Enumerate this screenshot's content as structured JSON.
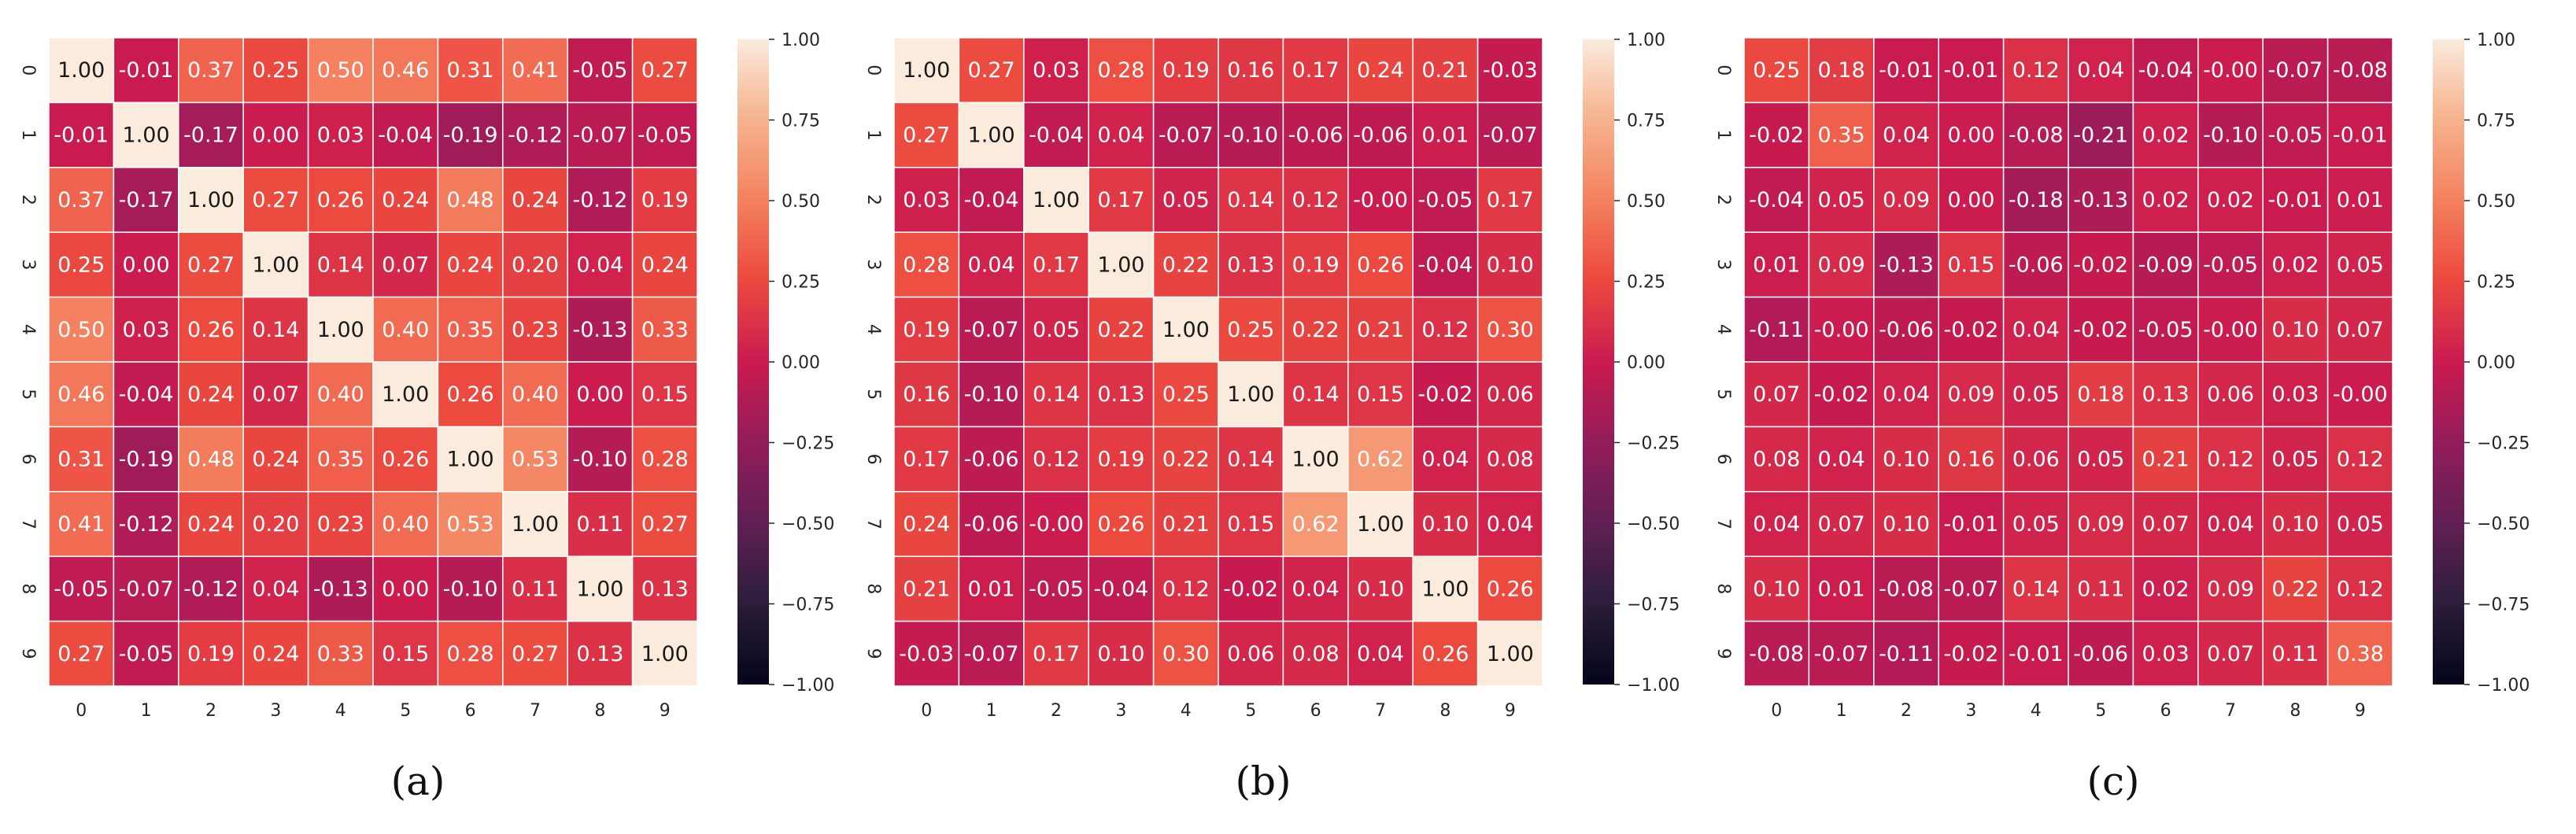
{
  "figure": {
    "panel_labels": [
      "(a)",
      "(b)",
      "(c)"
    ]
  },
  "colormap": {
    "name": "rocket",
    "stops": [
      [
        0.0,
        "#03051a"
      ],
      [
        0.13,
        "#2e1e3c"
      ],
      [
        0.25,
        "#611f53"
      ],
      [
        0.38,
        "#951c5b"
      ],
      [
        0.5,
        "#cb1b4f"
      ],
      [
        0.63,
        "#ec4a3f"
      ],
      [
        0.75,
        "#f4815f"
      ],
      [
        0.88,
        "#f6b48e"
      ],
      [
        1.0,
        "#faebdd"
      ]
    ],
    "cell_text_dark": "#1a1a1a",
    "cell_text_light": "#ffffff",
    "cell_border": "#ffffff"
  },
  "chart_data": [
    {
      "type": "heatmap",
      "label": "(a)",
      "x_ticks": [
        "0",
        "1",
        "2",
        "3",
        "4",
        "5",
        "6",
        "7",
        "8",
        "9"
      ],
      "y_ticks": [
        "0",
        "1",
        "2",
        "3",
        "4",
        "5",
        "6",
        "7",
        "8",
        "9"
      ],
      "vmin": -1.0,
      "vmax": 1.0,
      "colorbar_ticks": [
        "1.00",
        "0.75",
        "0.50",
        "0.25",
        "0.00",
        "−0.25",
        "−0.50",
        "−0.75",
        "−1.00"
      ],
      "values": [
        [
          1.0,
          -0.01,
          0.37,
          0.25,
          0.5,
          0.46,
          0.31,
          0.41,
          -0.05,
          0.27
        ],
        [
          -0.01,
          1.0,
          -0.17,
          0.0,
          0.03,
          -0.04,
          -0.19,
          -0.12,
          -0.07,
          -0.05
        ],
        [
          0.37,
          -0.17,
          1.0,
          0.27,
          0.26,
          0.24,
          0.48,
          0.24,
          -0.12,
          0.19
        ],
        [
          0.25,
          0.0,
          0.27,
          1.0,
          0.14,
          0.07,
          0.24,
          0.2,
          0.04,
          0.24
        ],
        [
          0.5,
          0.03,
          0.26,
          0.14,
          1.0,
          0.4,
          0.35,
          0.23,
          -0.13,
          0.33
        ],
        [
          0.46,
          -0.04,
          0.24,
          0.07,
          0.4,
          1.0,
          0.26,
          0.4,
          0.0,
          0.15
        ],
        [
          0.31,
          -0.19,
          0.48,
          0.24,
          0.35,
          0.26,
          1.0,
          0.53,
          -0.1,
          0.28
        ],
        [
          0.41,
          -0.12,
          0.24,
          0.2,
          0.23,
          0.4,
          0.53,
          1.0,
          0.11,
          0.27
        ],
        [
          -0.05,
          -0.07,
          -0.12,
          0.04,
          -0.13,
          0.0,
          -0.1,
          0.11,
          1.0,
          0.13
        ],
        [
          0.27,
          -0.05,
          0.19,
          0.24,
          0.33,
          0.15,
          0.28,
          0.27,
          0.13,
          1.0
        ]
      ]
    },
    {
      "type": "heatmap",
      "label": "(b)",
      "x_ticks": [
        "0",
        "1",
        "2",
        "3",
        "4",
        "5",
        "6",
        "7",
        "8",
        "9"
      ],
      "y_ticks": [
        "0",
        "1",
        "2",
        "3",
        "4",
        "5",
        "6",
        "7",
        "8",
        "9"
      ],
      "vmin": -1.0,
      "vmax": 1.0,
      "colorbar_ticks": [
        "1.00",
        "0.75",
        "0.50",
        "0.25",
        "0.00",
        "−0.25",
        "−0.50",
        "−0.75",
        "−1.00"
      ],
      "values": [
        [
          1.0,
          0.27,
          0.03,
          0.28,
          0.19,
          0.16,
          0.17,
          0.24,
          0.21,
          -0.03
        ],
        [
          0.27,
          1.0,
          -0.04,
          0.04,
          -0.07,
          -0.1,
          -0.06,
          -0.06,
          0.01,
          -0.07
        ],
        [
          0.03,
          -0.04,
          1.0,
          0.17,
          0.05,
          0.14,
          0.12,
          -0.0,
          -0.05,
          0.17
        ],
        [
          0.28,
          0.04,
          0.17,
          1.0,
          0.22,
          0.13,
          0.19,
          0.26,
          -0.04,
          0.1
        ],
        [
          0.19,
          -0.07,
          0.05,
          0.22,
          1.0,
          0.25,
          0.22,
          0.21,
          0.12,
          0.3
        ],
        [
          0.16,
          -0.1,
          0.14,
          0.13,
          0.25,
          1.0,
          0.14,
          0.15,
          -0.02,
          0.06
        ],
        [
          0.17,
          -0.06,
          0.12,
          0.19,
          0.22,
          0.14,
          1.0,
          0.62,
          0.04,
          0.08
        ],
        [
          0.24,
          -0.06,
          -0.0,
          0.26,
          0.21,
          0.15,
          0.62,
          1.0,
          0.1,
          0.04
        ],
        [
          0.21,
          0.01,
          -0.05,
          -0.04,
          0.12,
          -0.02,
          0.04,
          0.1,
          1.0,
          0.26
        ],
        [
          -0.03,
          -0.07,
          0.17,
          0.1,
          0.3,
          0.06,
          0.08,
          0.04,
          0.26,
          1.0
        ]
      ]
    },
    {
      "type": "heatmap",
      "label": "(c)",
      "x_ticks": [
        "0",
        "1",
        "2",
        "3",
        "4",
        "5",
        "6",
        "7",
        "8",
        "9"
      ],
      "y_ticks": [
        "0",
        "1",
        "2",
        "3",
        "4",
        "5",
        "6",
        "7",
        "8",
        "9"
      ],
      "vmin": -1.0,
      "vmax": 1.0,
      "colorbar_ticks": [
        "1.00",
        "0.75",
        "0.50",
        "0.25",
        "0.00",
        "−0.25",
        "−0.50",
        "−0.75",
        "−1.00"
      ],
      "values": [
        [
          0.25,
          0.18,
          -0.01,
          -0.01,
          0.12,
          0.04,
          -0.04,
          -0.0,
          -0.07,
          -0.08
        ],
        [
          -0.02,
          0.35,
          0.04,
          0.0,
          -0.08,
          -0.21,
          0.02,
          -0.1,
          -0.05,
          -0.01
        ],
        [
          -0.04,
          0.05,
          0.09,
          0.0,
          -0.18,
          -0.13,
          0.02,
          0.02,
          -0.01,
          0.01
        ],
        [
          0.01,
          0.09,
          -0.13,
          0.15,
          -0.06,
          -0.02,
          -0.09,
          -0.05,
          0.02,
          0.05
        ],
        [
          -0.11,
          -0.0,
          -0.06,
          -0.02,
          0.04,
          -0.02,
          -0.05,
          -0.0,
          0.1,
          0.07
        ],
        [
          0.07,
          -0.02,
          0.04,
          0.09,
          0.05,
          0.18,
          0.13,
          0.06,
          0.03,
          -0.0
        ],
        [
          0.08,
          0.04,
          0.1,
          0.16,
          0.06,
          0.05,
          0.21,
          0.12,
          0.05,
          0.12
        ],
        [
          0.04,
          0.07,
          0.1,
          -0.01,
          0.05,
          0.09,
          0.07,
          0.04,
          0.1,
          0.05
        ],
        [
          0.1,
          0.01,
          -0.08,
          -0.07,
          0.14,
          0.11,
          0.02,
          0.09,
          0.22,
          0.12
        ],
        [
          -0.08,
          -0.07,
          -0.11,
          -0.02,
          -0.01,
          -0.06,
          0.03,
          0.07,
          0.11,
          0.38
        ]
      ]
    }
  ]
}
